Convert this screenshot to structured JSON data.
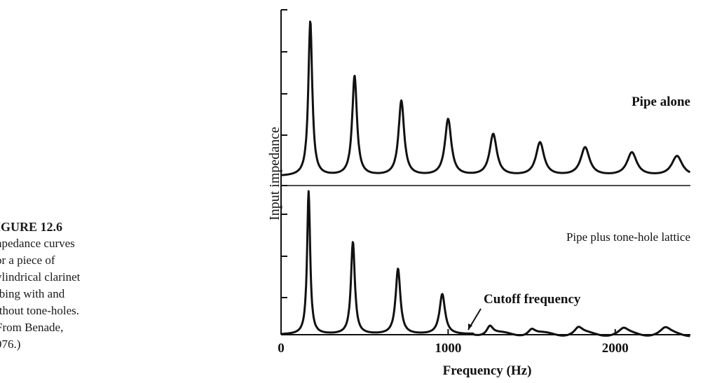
{
  "caption": {
    "title": "IGURE 12.6",
    "lines": [
      "npedance curves",
      "or a piece of",
      "ylindrical clarinet",
      "ıbing with and",
      "ithout tone-holes.",
      "From Benade,",
      "976.)"
    ]
  },
  "chart_data": {
    "type": "line",
    "xlabel": "Frequency (Hz)",
    "ylabel": "Input impedance",
    "x_ticks": [
      0,
      1000,
      2000
    ],
    "xlim": [
      0,
      2450
    ],
    "panels": [
      {
        "label": "Pipe alone",
        "peaks": [
          {
            "x": 175,
            "y": 0.93
          },
          {
            "x": 440,
            "y": 0.6
          },
          {
            "x": 720,
            "y": 0.45
          },
          {
            "x": 1000,
            "y": 0.34
          },
          {
            "x": 1270,
            "y": 0.25
          },
          {
            "x": 1550,
            "y": 0.2
          },
          {
            "x": 1820,
            "y": 0.17
          },
          {
            "x": 2100,
            "y": 0.14
          },
          {
            "x": 2370,
            "y": 0.12
          }
        ]
      },
      {
        "label": "Pipe plus tone-hole lattice",
        "peaks": [
          {
            "x": 165,
            "y": 0.96
          },
          {
            "x": 430,
            "y": 0.62
          },
          {
            "x": 700,
            "y": 0.44
          },
          {
            "x": 965,
            "y": 0.27
          },
          {
            "x": 1250,
            "y": 0.06
          },
          {
            "x": 1500,
            "y": 0.04
          },
          {
            "x": 1780,
            "y": 0.045
          },
          {
            "x": 2050,
            "y": 0.035
          },
          {
            "x": 2300,
            "y": 0.04
          }
        ],
        "annotation": {
          "text": "Cutoff frequency",
          "x": 1150
        }
      }
    ]
  }
}
